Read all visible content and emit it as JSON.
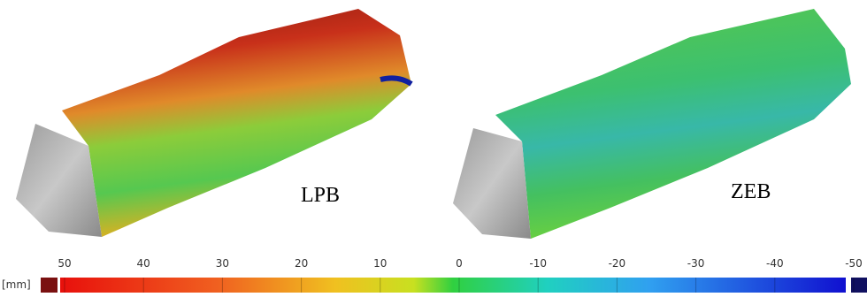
{
  "panels": [
    {
      "label": "LPB"
    },
    {
      "label": "ZEB"
    }
  ],
  "colorbar": {
    "unit": "[mm]",
    "ticks": [
      50,
      40,
      30,
      20,
      10,
      0,
      -10,
      -20,
      -30,
      -40,
      -50
    ]
  }
}
